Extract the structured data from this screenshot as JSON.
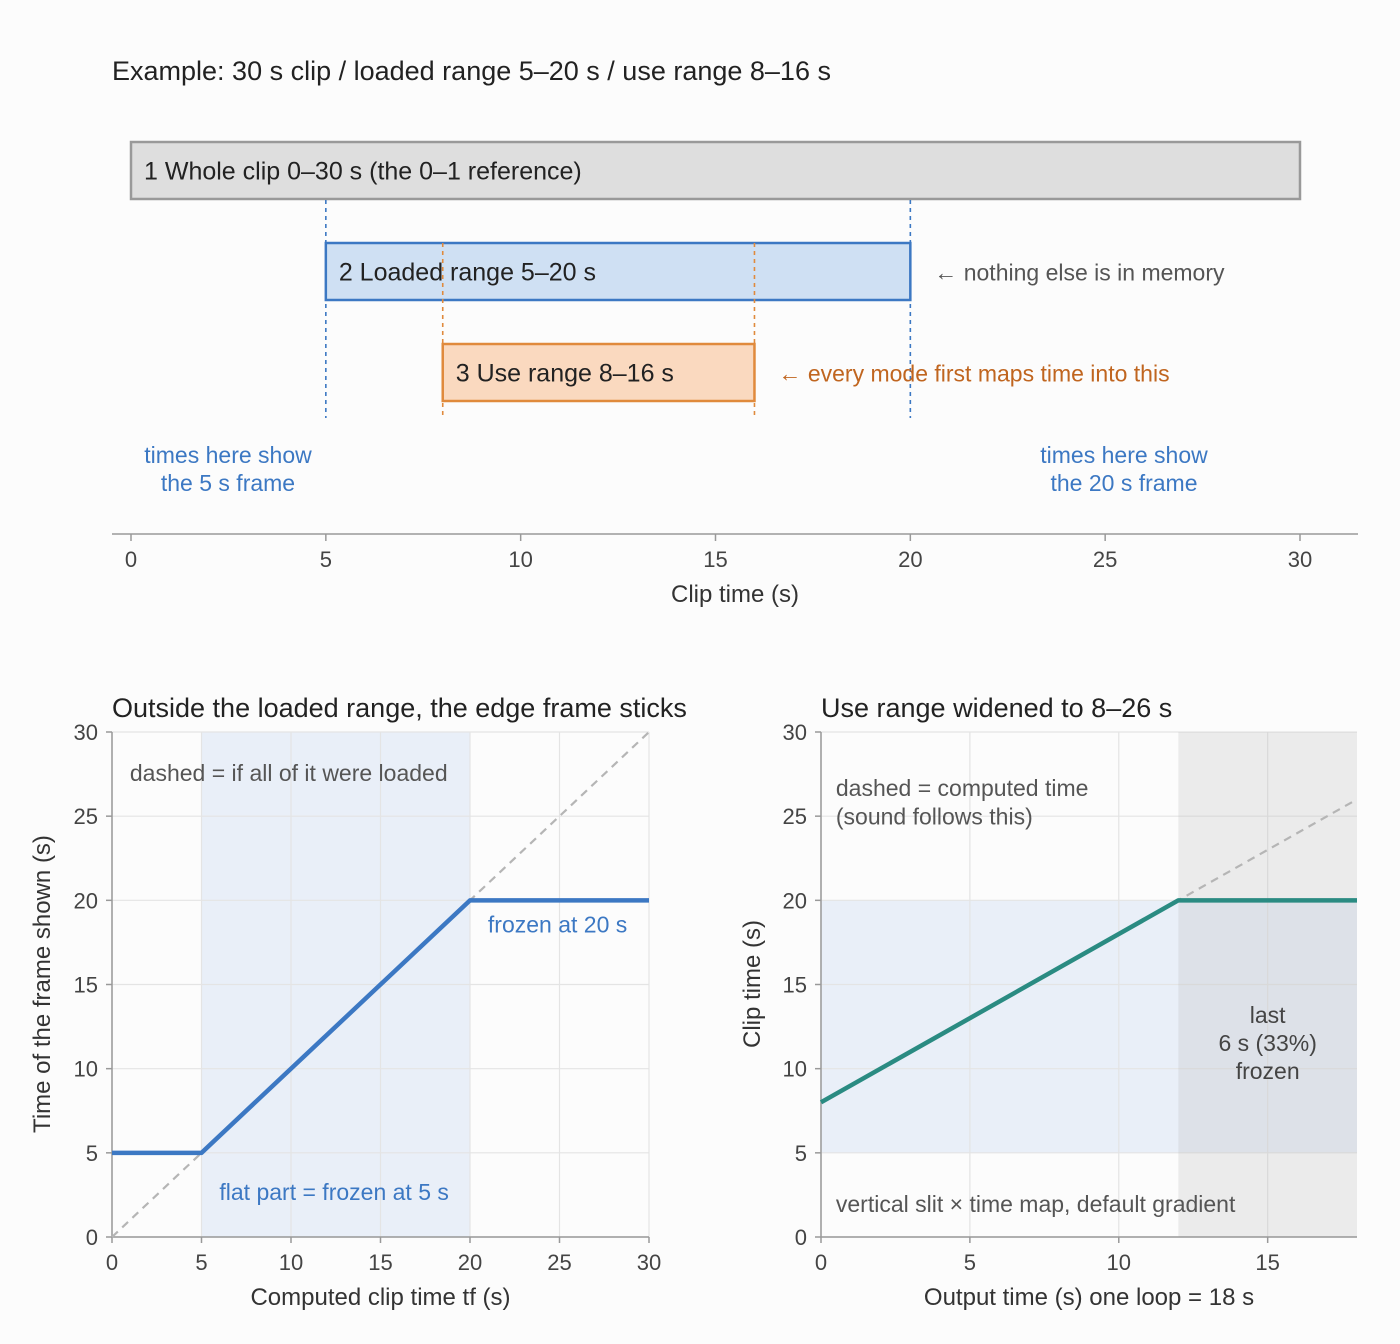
{
  "chart_data": [
    {
      "type": "bar",
      "title": "Example: 30 s clip / loaded range 5–20 s / use range 8–16 s",
      "xlabel": "Clip time (s)",
      "xlim": [
        0,
        30
      ],
      "xticks": [
        0,
        5,
        10,
        15,
        20,
        25,
        30
      ],
      "bars": [
        {
          "label": "1  Whole clip  0–30 s (the 0–1 reference)",
          "start": 0,
          "end": 30,
          "fill": "#dedede",
          "stroke": "#999999"
        },
        {
          "label": "2  Loaded range  5–20 s",
          "start": 5,
          "end": 20,
          "fill": "#cfe0f3",
          "stroke": "#3c78c3",
          "note": "← nothing else is in memory",
          "note_color": "#555555"
        },
        {
          "label": "3  Use range  8–16 s",
          "start": 8,
          "end": 16,
          "fill": "#fad9bf",
          "stroke": "#e08a3c",
          "note": "← every mode first maps time into this",
          "note_color": "#c0651f"
        }
      ],
      "edge_notes": [
        {
          "lines": [
            "times here show",
            "the 5 s frame"
          ],
          "x": 5
        },
        {
          "lines": [
            "times here show",
            "the 20 s frame"
          ],
          "x": 25
        }
      ],
      "colors": {
        "blue": "#3c78c3",
        "orange": "#e08a3c"
      }
    },
    {
      "type": "line",
      "title": "Outside the loaded range, the edge frame sticks",
      "xlabel": "Computed clip time tf (s)",
      "ylabel": "Time of the frame shown (s)",
      "xlim": [
        0,
        30
      ],
      "ylim": [
        0,
        30
      ],
      "xticks": [
        0,
        5,
        10,
        15,
        20,
        25,
        30
      ],
      "yticks": [
        0,
        5,
        10,
        15,
        20,
        25,
        30
      ],
      "grid": true,
      "shaded_x": [
        5,
        20
      ],
      "series": [
        {
          "style": "dashed",
          "color": "#b5b5b5",
          "points": [
            [
              0,
              0
            ],
            [
              30,
              30
            ]
          ]
        },
        {
          "style": "solid",
          "color": "#3c78c3",
          "points": [
            [
              0,
              5
            ],
            [
              5,
              5
            ],
            [
              20,
              20
            ],
            [
              30,
              20
            ]
          ]
        }
      ],
      "annotations": [
        {
          "text": "dashed = if all of it were loaded",
          "x": 1,
          "y": 27.1,
          "color": "#555555"
        },
        {
          "text": "frozen at 20 s",
          "x": 21,
          "y": 18.1,
          "color": "#3c78c3"
        },
        {
          "text": "flat part = frozen at 5 s",
          "x": 6,
          "y": 2.2,
          "color": "#3c78c3"
        }
      ]
    },
    {
      "type": "line",
      "title": "Use range widened to 8–26 s",
      "xlabel": "Output time (s)   one loop = 18 s",
      "ylabel": "Clip time (s)",
      "xlim": [
        0,
        18
      ],
      "ylim": [
        0,
        30
      ],
      "xticks": [
        0,
        5,
        10,
        15
      ],
      "yticks": [
        0,
        5,
        10,
        15,
        20,
        25,
        30
      ],
      "grid": true,
      "shaded_band": {
        "x": [
          0,
          18
        ],
        "y": [
          5,
          20
        ]
      },
      "frozen_region_x": [
        12,
        18
      ],
      "series": [
        {
          "style": "dashed",
          "color": "#b5b5b5",
          "points": [
            [
              0,
              8
            ],
            [
              18,
              26
            ]
          ]
        },
        {
          "style": "solid",
          "color": "#2a8b82",
          "points": [
            [
              0,
              8
            ],
            [
              12,
              20
            ],
            [
              18,
              20
            ]
          ]
        }
      ],
      "annotations": [
        {
          "text": "dashed = computed time",
          "x": 0.5,
          "y": 26.2,
          "color": "#555555"
        },
        {
          "text": "(sound follows this)",
          "x": 0.5,
          "y": 24.5,
          "color": "#555555"
        },
        {
          "text": "vertical slit × time map, default gradient",
          "x": 0.5,
          "y": 1.5,
          "color": "#555555"
        }
      ],
      "frozen_note": [
        "last",
        "6 s (33%)",
        "frozen"
      ]
    }
  ]
}
